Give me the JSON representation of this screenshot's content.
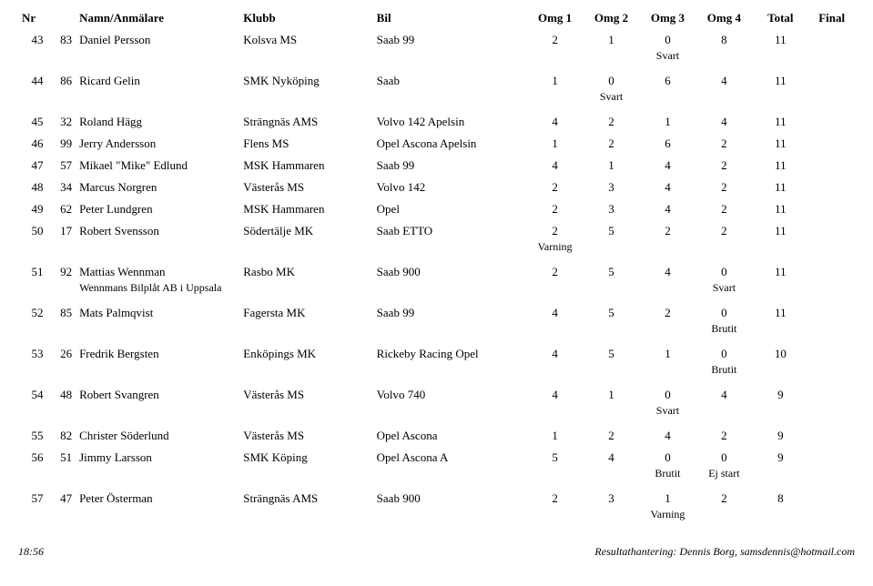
{
  "header": {
    "nr": "Nr",
    "name": "Namn/Anmälare",
    "club": "Klubb",
    "car": "Bil",
    "omg1": "Omg 1",
    "omg2": "Omg 2",
    "omg3": "Omg 3",
    "omg4": "Omg 4",
    "total": "Total",
    "final": "Final"
  },
  "rows": [
    {
      "pos": "43",
      "nr": "83",
      "name": "Daniel Persson",
      "club": "Kolsva MS",
      "car": "Saab 99",
      "o1": "2",
      "o2": "1",
      "o3": "0",
      "o4": "8",
      "total": "11",
      "final": "",
      "note3": "Svart"
    },
    {
      "pos": "44",
      "nr": "86",
      "name": "Ricard Gelin",
      "club": "SMK Nyköping",
      "car": "Saab",
      "o1": "1",
      "o2": "0",
      "o3": "6",
      "o4": "4",
      "total": "11",
      "final": "",
      "note2": "Svart"
    },
    {
      "pos": "45",
      "nr": "32",
      "name": "Roland Hägg",
      "club": "Strängnäs AMS",
      "car": "Volvo 142 Apelsin",
      "o1": "4",
      "o2": "2",
      "o3": "1",
      "o4": "4",
      "total": "11",
      "final": ""
    },
    {
      "pos": "46",
      "nr": "99",
      "name": "Jerry Andersson",
      "club": "Flens MS",
      "car": "Opel Ascona Apelsin",
      "o1": "1",
      "o2": "2",
      "o3": "6",
      "o4": "2",
      "total": "11",
      "final": ""
    },
    {
      "pos": "47",
      "nr": "57",
      "name": "Mikael \"Mike\" Edlund",
      "club": "MSK Hammaren",
      "car": "Saab 99",
      "o1": "4",
      "o2": "1",
      "o3": "4",
      "o4": "2",
      "total": "11",
      "final": ""
    },
    {
      "pos": "48",
      "nr": "34",
      "name": "Marcus Norgren",
      "club": "Västerås MS",
      "car": "Volvo 142",
      "o1": "2",
      "o2": "3",
      "o3": "4",
      "o4": "2",
      "total": "11",
      "final": ""
    },
    {
      "pos": "49",
      "nr": "62",
      "name": "Peter Lundgren",
      "club": "MSK Hammaren",
      "car": "Opel",
      "o1": "2",
      "o2": "3",
      "o3": "4",
      "o4": "2",
      "total": "11",
      "final": ""
    },
    {
      "pos": "50",
      "nr": "17",
      "name": "Robert Svensson",
      "club": "Södertälje MK",
      "car": "Saab ETTO",
      "o1": "2",
      "o2": "5",
      "o3": "2",
      "o4": "2",
      "total": "11",
      "final": "",
      "note1": "Varning"
    },
    {
      "pos": "51",
      "nr": "92",
      "name": "Mattias Wennman",
      "club": "Rasbo MK",
      "car": "Saab 900",
      "o1": "2",
      "o2": "5",
      "o3": "4",
      "o4": "0",
      "total": "11",
      "final": "",
      "sponsor": "Wennmans Bilplåt AB i Uppsala",
      "note4": "Svart"
    },
    {
      "pos": "52",
      "nr": "85",
      "name": "Mats Palmqvist",
      "club": "Fagersta MK",
      "car": "Saab 99",
      "o1": "4",
      "o2": "5",
      "o3": "2",
      "o4": "0",
      "total": "11",
      "final": "",
      "note4": "Brutit"
    },
    {
      "pos": "53",
      "nr": "26",
      "name": "Fredrik Bergsten",
      "club": "Enköpings MK",
      "car": "Rickeby Racing Opel",
      "o1": "4",
      "o2": "5",
      "o3": "1",
      "o4": "0",
      "total": "10",
      "final": "",
      "note4": "Brutit"
    },
    {
      "pos": "54",
      "nr": "48",
      "name": "Robert Svangren",
      "club": "Västerås MS",
      "car": "Volvo 740",
      "o1": "4",
      "o2": "1",
      "o3": "0",
      "o4": "4",
      "total": "9",
      "final": "",
      "note3": "Svart"
    },
    {
      "pos": "55",
      "nr": "82",
      "name": "Christer Söderlund",
      "club": "Västerås MS",
      "car": "Opel Ascona",
      "o1": "1",
      "o2": "2",
      "o3": "4",
      "o4": "2",
      "total": "9",
      "final": ""
    },
    {
      "pos": "56",
      "nr": "51",
      "name": "Jimmy Larsson",
      "club": "SMK Köping",
      "car": "Opel Ascona A",
      "o1": "5",
      "o2": "4",
      "o3": "0",
      "o4": "0",
      "total": "9",
      "final": "",
      "note3": "Brutit",
      "note4": "Ej start"
    },
    {
      "pos": "57",
      "nr": "47",
      "name": "Peter Österman",
      "club": "Strängnäs AMS",
      "car": "Saab 900",
      "o1": "2",
      "o2": "3",
      "o3": "1",
      "o4": "2",
      "total": "8",
      "final": "",
      "note3": "Varning"
    }
  ],
  "footer": {
    "time": "18:56",
    "credit": "Resultathantering: Dennis Borg, samsdennis@hotmail.com"
  }
}
